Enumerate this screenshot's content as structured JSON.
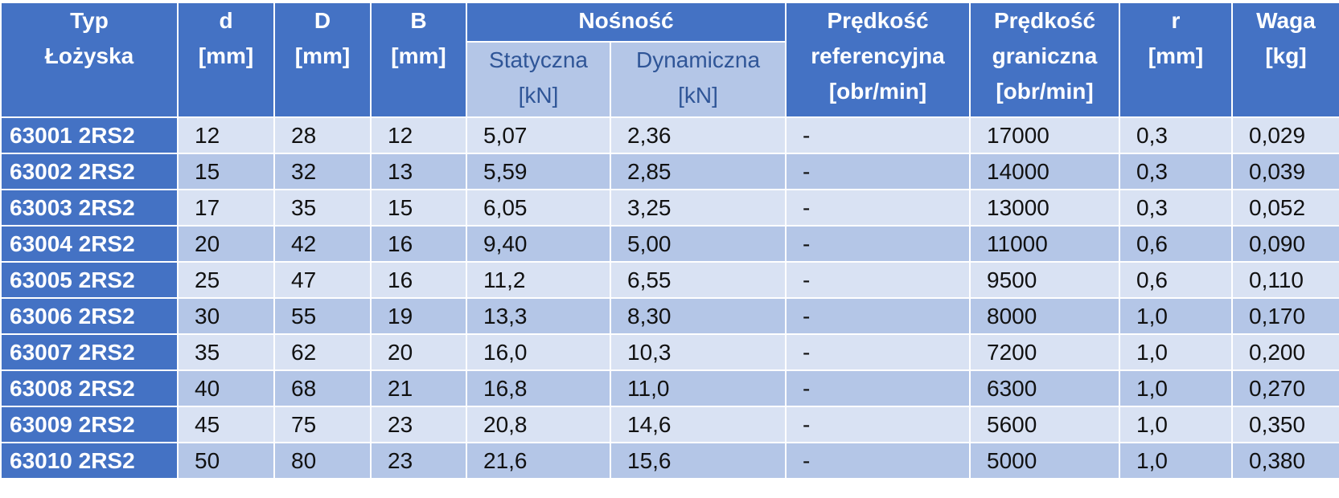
{
  "table": {
    "header": {
      "typ": [
        "Typ",
        "Łożyska"
      ],
      "d": [
        "d",
        "[mm]"
      ],
      "D": [
        "D",
        "[mm]"
      ],
      "B": [
        "B",
        "[mm]"
      ],
      "group": "Nośność",
      "static": [
        "Statyczna",
        "[kN]"
      ],
      "dynamic": [
        "Dynamiczna",
        "[kN]"
      ],
      "ref_speed": [
        "Prędkość",
        "referencyjna",
        "[obr/min]"
      ],
      "limit_speed": [
        "Prędkość",
        "graniczna",
        "[obr/min]"
      ],
      "r": [
        "r",
        "[mm]"
      ],
      "weight": [
        "Waga",
        "[kg]"
      ]
    },
    "rows": [
      [
        "63001 2RS2",
        "12",
        "28",
        "12",
        "5,07",
        "2,36",
        "-",
        "17000",
        "0,3",
        "0,029"
      ],
      [
        "63002 2RS2",
        "15",
        "32",
        "13",
        "5,59",
        "2,85",
        "-",
        "14000",
        "0,3",
        "0,039"
      ],
      [
        "63003 2RS2",
        "17",
        "35",
        "15",
        "6,05",
        "3,25",
        "-",
        "13000",
        "0,3",
        "0,052"
      ],
      [
        "63004 2RS2",
        "20",
        "42",
        "16",
        "9,40",
        "5,00",
        "-",
        "11000",
        "0,6",
        "0,090"
      ],
      [
        "63005 2RS2",
        "25",
        "47",
        "16",
        "11,2",
        "6,55",
        "-",
        "9500",
        "0,6",
        "0,110"
      ],
      [
        "63006 2RS2",
        "30",
        "55",
        "19",
        "13,3",
        "8,30",
        "-",
        "8000",
        "1,0",
        "0,170"
      ],
      [
        "63007 2RS2",
        "35",
        "62",
        "20",
        "16,0",
        "10,3",
        "-",
        "7200",
        "1,0",
        "0,200"
      ],
      [
        "63008 2RS2",
        "40",
        "68",
        "21",
        "16,8",
        "11,0",
        "-",
        "6300",
        "1,0",
        "0,270"
      ],
      [
        "63009 2RS2",
        "45",
        "75",
        "23",
        "20,8",
        "14,6",
        "-",
        "5600",
        "1,0",
        "0,350"
      ],
      [
        "63010 2RS2",
        "50",
        "80",
        "23",
        "21,6",
        "15,6",
        "-",
        "5000",
        "1,0",
        "0,380"
      ]
    ]
  }
}
